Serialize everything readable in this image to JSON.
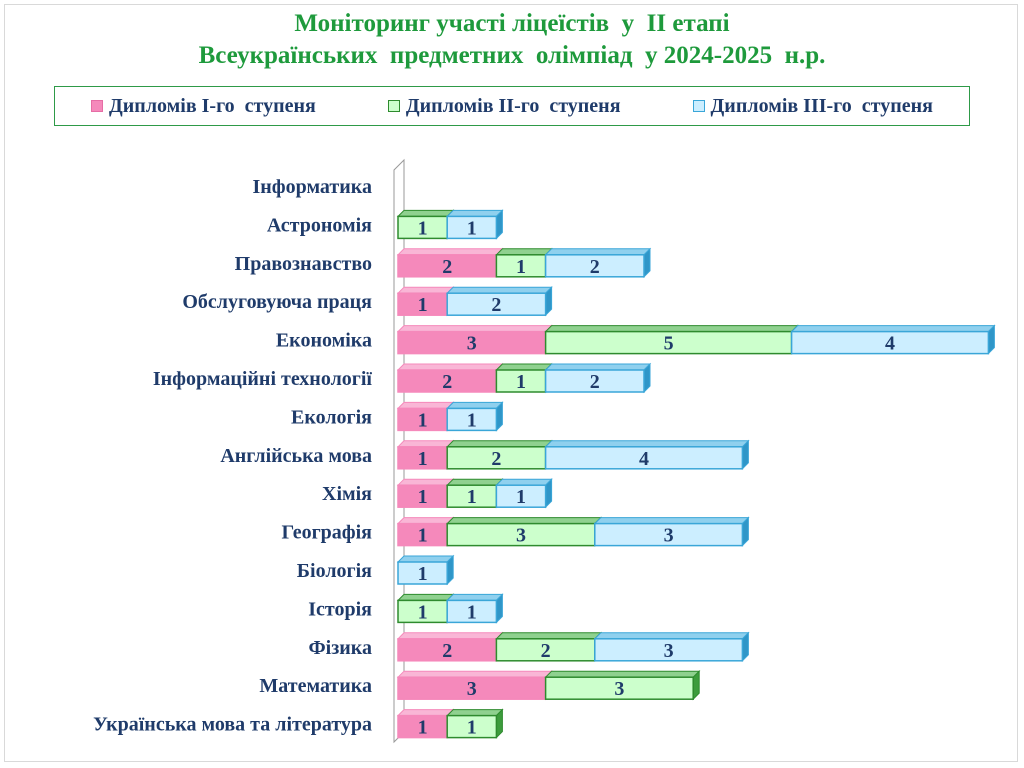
{
  "title": {
    "line1": "Моніторинг участі ліцеїстів  у  ІІ етапі",
    "line2": "Всеукраїнських  предметних  олімпіад  у 2024-2025  н.р."
  },
  "colors": {
    "series1_fill": "#f589bb",
    "series1_top": "#f9b6d6",
    "series1_side": "#d96b9e",
    "series2_fill": "#ccffcc",
    "series2_edge": "#2e8b2e",
    "series2_top": "#8fd18f",
    "series2_side": "#3d9c3d",
    "series3_fill": "#cceeff",
    "series3_edge": "#3aa6d8",
    "series3_top": "#8fd0ee",
    "series3_side": "#2f96c8",
    "text": "#1f3b6a",
    "title": "#1e9a3c"
  },
  "chart_data": {
    "type": "bar",
    "orientation": "horizontal",
    "stacked": true,
    "legend_position": "top",
    "grid": false,
    "categories": [
      "Інформатика",
      "Астрономія",
      "Правознавство",
      "Обслуговуюча  праця",
      "Економіка",
      "Інформаційні технології",
      "Екологія",
      "Англійська мова",
      "Хімія",
      "Географія",
      "Біологія",
      "Історія",
      "Фізика",
      "Математика",
      "Українська мова та література"
    ],
    "series": [
      {
        "name": "Дипломів І-го  ступеня",
        "values": [
          0,
          0,
          2,
          1,
          3,
          2,
          1,
          1,
          1,
          1,
          0,
          0,
          2,
          3,
          1
        ]
      },
      {
        "name": "Дипломів ІІ-го  ступеня",
        "values": [
          0,
          1,
          1,
          0,
          5,
          1,
          0,
          2,
          1,
          3,
          0,
          1,
          2,
          3,
          1
        ]
      },
      {
        "name": "Дипломів ІІІ-го  ступеня",
        "values": [
          0,
          1,
          2,
          2,
          4,
          2,
          1,
          4,
          1,
          3,
          1,
          1,
          3,
          0,
          0
        ]
      }
    ]
  }
}
